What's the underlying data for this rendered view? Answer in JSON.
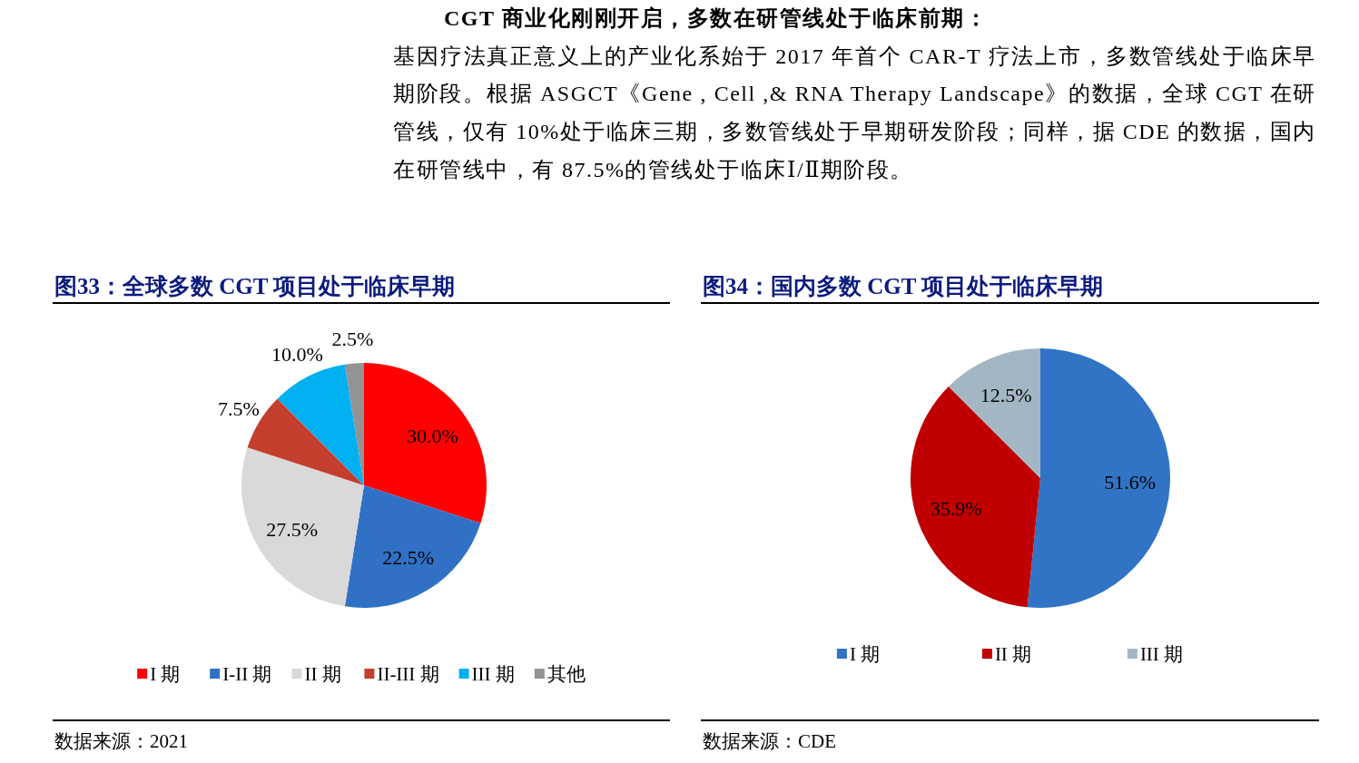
{
  "chart_data": [
    {
      "type": "other",
      "title": "CGT 商业化刚刚开启，多数在研管线处于临床前期：",
      "annotations": [
        "基因疗法真正意义上的产业化系始于 2017 年首个 CAR-T 疗法上市，多数管线处于临床早期阶段。根据 ASGCT《Gene , Cell ,& RNA Therapy Landscape》的数据，全球 CGT 在研管线，仅有 10%处于临床三期，多数管线处于早期研发阶段；同样，据 CDE 的数据，国内在研管线中，有 87.5%的管线处于临床Ⅰ/Ⅱ期阶段。"
      ]
    },
    {
      "type": "pie",
      "title": "图33：全球多数 CGT 项目处于临床早期",
      "categories": [
        "I 期",
        "I-II 期",
        "II 期",
        "II-III 期",
        "III 期",
        "其他"
      ],
      "values": [
        30.0,
        22.5,
        27.5,
        7.5,
        10.0,
        2.5
      ],
      "colors": [
        "#ff0000",
        "#3071c5",
        "#d9d9d9",
        "#c43e2d",
        "#00b0f0",
        "#939393"
      ],
      "value_labels": [
        "30.0%",
        "22.5%",
        "27.5%",
        "7.5%",
        "10.0%",
        "2.5%"
      ],
      "legend": "bottom",
      "annotations": [
        "数据来源：2021"
      ]
    },
    {
      "type": "pie",
      "title": "图34：国内多数 CGT 项目处于临床早期",
      "categories": [
        "I 期",
        "II 期",
        "III 期"
      ],
      "values": [
        51.6,
        35.9,
        12.5
      ],
      "colors": [
        "#3174c6",
        "#c00000",
        "#a2b7c3"
      ],
      "value_labels": [
        "51.6%",
        "35.9%",
        "12.5%"
      ],
      "legend": "bottom",
      "annotations": [
        "数据来源：CDE"
      ]
    }
  ]
}
